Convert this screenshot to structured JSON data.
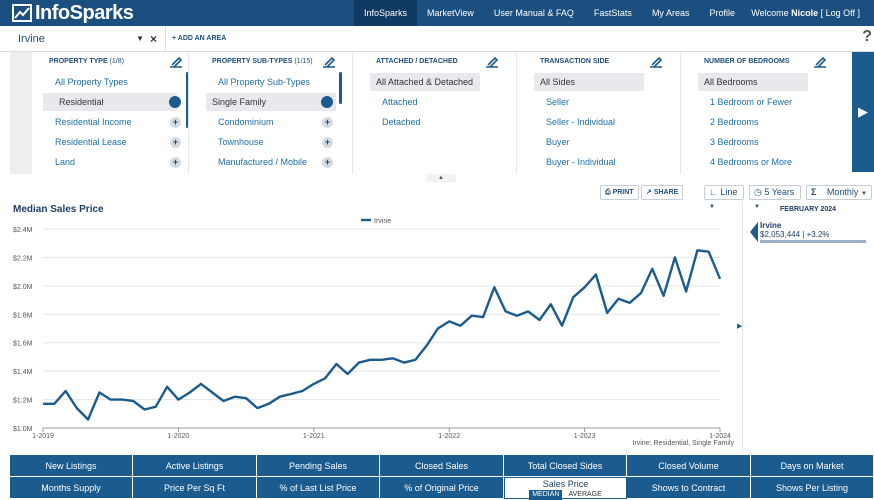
{
  "brand": {
    "name": "InfoSparks"
  },
  "nav": {
    "items": [
      "InfoSparks",
      "MarketView",
      "User Manual & FAQ",
      "FastStats",
      "My Areas",
      "Profile"
    ],
    "welcome_prefix": "Welcome",
    "user": "Nicole",
    "logoff": "[ Log Off ]"
  },
  "area": {
    "selected": "Irvine",
    "add_label": "+ ADD AN AREA",
    "help": "?"
  },
  "filters": {
    "property_type": {
      "title": "PROPERTY TYPE",
      "count": "(1/8)",
      "options": [
        "All Property Types",
        "Residential",
        "Residential Income",
        "Residential Lease",
        "Land"
      ]
    },
    "property_sub_types": {
      "title": "PROPERTY SUB-TYPES",
      "count": "(1/15)",
      "options": [
        "All Property Sub-Types",
        "Single Family",
        "Condominium",
        "Townhouse",
        "Manufactured / Mobile"
      ]
    },
    "attached_detached": {
      "title": "ATTACHED / DETACHED",
      "options": [
        "All Attached & Detached",
        "Attached",
        "Detached"
      ]
    },
    "transaction_side": {
      "title": "TRANSACTION SIDE",
      "options": [
        "All Sides",
        "Seller",
        "Seller - Individual",
        "Buyer",
        "Buyer - Individual"
      ]
    },
    "bedrooms": {
      "title": "NUMBER OF BEDROOMS",
      "options": [
        "All Bedrooms",
        "1 Bedroom or Fewer",
        "2 Bedrooms",
        "3 Bedrooms",
        "4 Bedrooms or More"
      ]
    }
  },
  "toolbar": {
    "print": "PRINT",
    "share": "SHARE",
    "chart_type": "Line",
    "range": "5 Years",
    "interval": "Monthly"
  },
  "side": {
    "date": "FEBRUARY 2024",
    "area": "Irvine",
    "value": "$2,053,444 | +3.2%"
  },
  "chart_data": {
    "type": "line",
    "title": "Median Sales Price",
    "legend": [
      "Irvine"
    ],
    "footnote": "Irvine: Residential, Single Family",
    "y_ticks": [
      "$1.0M",
      "$1.2M",
      "$1.4M",
      "$1.6M",
      "$1.8M",
      "$2.0M",
      "$2.2M",
      "$2.4M"
    ],
    "ylim": [
      1.0,
      2.4
    ],
    "x_ticks": [
      "1-2019",
      "1-2020",
      "1-2021",
      "1-2022",
      "1-2023",
      "1-2024"
    ],
    "x_tick_index": [
      0,
      12,
      24,
      36,
      48,
      60
    ],
    "series": [
      {
        "name": "Irvine",
        "values": [
          1.17,
          1.17,
          1.26,
          1.14,
          1.06,
          1.25,
          1.2,
          1.2,
          1.19,
          1.13,
          1.15,
          1.29,
          1.2,
          1.25,
          1.31,
          1.25,
          1.19,
          1.22,
          1.21,
          1.14,
          1.17,
          1.22,
          1.24,
          1.26,
          1.31,
          1.35,
          1.45,
          1.38,
          1.46,
          1.48,
          1.48,
          1.49,
          1.46,
          1.48,
          1.58,
          1.7,
          1.75,
          1.72,
          1.79,
          1.78,
          1.99,
          1.82,
          1.79,
          1.82,
          1.76,
          1.87,
          1.72,
          1.92,
          1.99,
          2.08,
          1.81,
          1.91,
          1.88,
          1.95,
          2.12,
          1.93,
          2.2,
          1.96,
          2.25,
          2.24,
          2.05
        ]
      }
    ]
  },
  "metrics": {
    "row1": [
      "New Listings",
      "Active Listings",
      "Pending Sales",
      "Closed Sales",
      "Total Closed Sides",
      "Closed Volume",
      "Days on Market"
    ],
    "row2": [
      "Months Supply",
      "Price Per Sq Ft",
      "% of Last List Price",
      "% of Original Price",
      "Sales Price",
      "Shows to Contract",
      "Shows Per Listing"
    ],
    "sales_price_modes": [
      "MEDIAN",
      "AVERAGE"
    ]
  }
}
